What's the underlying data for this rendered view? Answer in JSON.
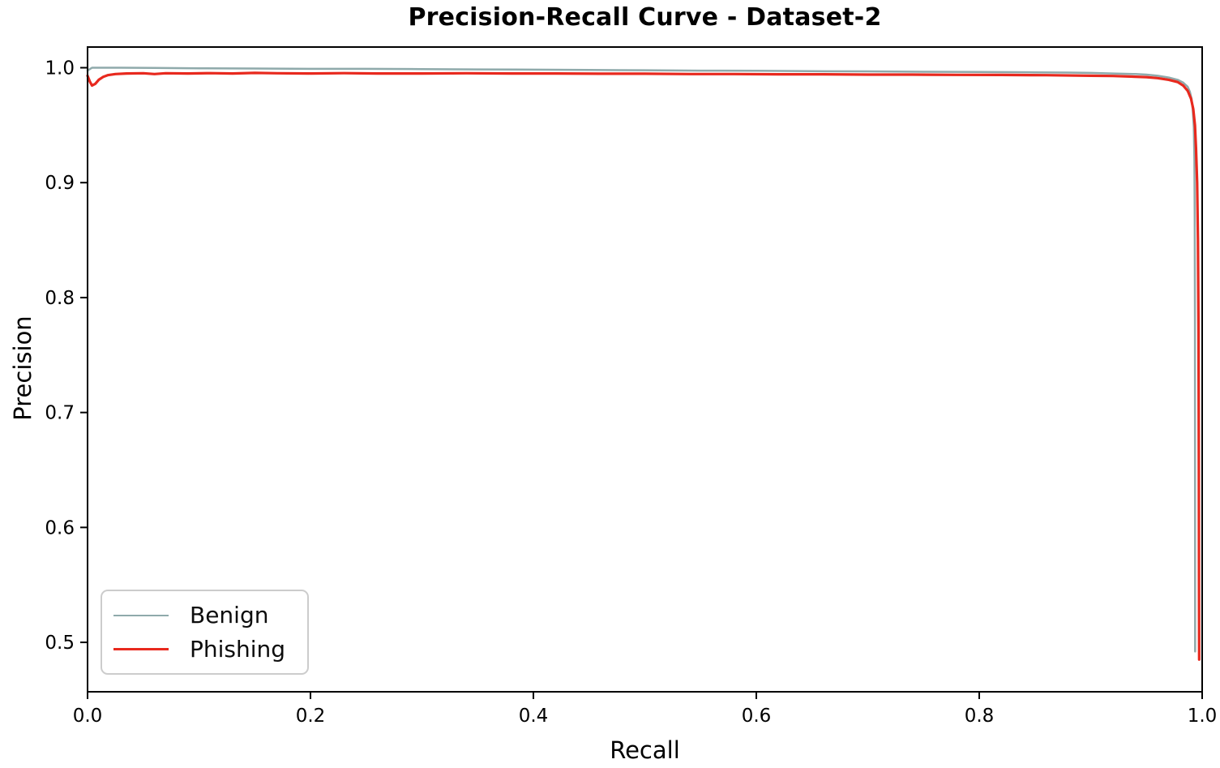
{
  "title": "Precision-Recall Curve - Dataset-2",
  "axes": {
    "xlabel": "Recall",
    "ylabel": "Precision"
  },
  "legend": {
    "position": "lower-left",
    "items": [
      {
        "label": "Benign",
        "color": "#8faaab"
      },
      {
        "label": "Phishing",
        "color": "#e8291e"
      }
    ]
  },
  "chart_data": {
    "type": "line",
    "title": "Precision-Recall Curve - Dataset-2",
    "xlabel": "Recall",
    "ylabel": "Precision",
    "xlim": [
      0.0,
      1.0
    ],
    "ylim": [
      0.457,
      1.018
    ],
    "grid": false,
    "axis_color": "#000000",
    "x_ticks": {
      "values": [
        0.0,
        0.2,
        0.4,
        0.6,
        0.8,
        1.0
      ],
      "labels": [
        "0.0",
        "0.2",
        "0.4",
        "0.6",
        "0.8",
        "1.0"
      ]
    },
    "y_ticks": {
      "values": [
        0.5,
        0.6,
        0.7,
        0.8,
        0.9,
        1.0
      ],
      "labels": [
        "0.5",
        "0.6",
        "0.7",
        "0.8",
        "0.9",
        "1.0"
      ]
    },
    "series": [
      {
        "name": "Benign",
        "color": "#8faaab",
        "linewidth": 2.5,
        "points": [
          [
            0.0,
            0.9975
          ],
          [
            0.004,
            1.0
          ],
          [
            0.03,
            1.0
          ],
          [
            0.06,
            0.9998
          ],
          [
            0.1,
            0.9995
          ],
          [
            0.15,
            0.9993
          ],
          [
            0.2,
            0.999
          ],
          [
            0.25,
            0.999
          ],
          [
            0.3,
            0.9988
          ],
          [
            0.35,
            0.9985
          ],
          [
            0.4,
            0.9983
          ],
          [
            0.45,
            0.998
          ],
          [
            0.5,
            0.9978
          ],
          [
            0.55,
            0.9975
          ],
          [
            0.6,
            0.9973
          ],
          [
            0.65,
            0.997
          ],
          [
            0.7,
            0.9968
          ],
          [
            0.75,
            0.9965
          ],
          [
            0.8,
            0.9963
          ],
          [
            0.85,
            0.996
          ],
          [
            0.88,
            0.9958
          ],
          [
            0.9,
            0.9955
          ],
          [
            0.92,
            0.995
          ],
          [
            0.94,
            0.9945
          ],
          [
            0.95,
            0.994
          ],
          [
            0.96,
            0.993
          ],
          [
            0.97,
            0.9915
          ],
          [
            0.978,
            0.9895
          ],
          [
            0.983,
            0.987
          ],
          [
            0.987,
            0.9835
          ],
          [
            0.989,
            0.979
          ],
          [
            0.9905,
            0.973
          ],
          [
            0.9915,
            0.964
          ],
          [
            0.9925,
            0.948
          ],
          [
            0.993,
            0.92
          ],
          [
            0.9933,
            0.87
          ],
          [
            0.9935,
            0.78
          ],
          [
            0.9936,
            0.65
          ],
          [
            0.9937,
            0.492
          ]
        ]
      },
      {
        "name": "Phishing",
        "color": "#e8291e",
        "linewidth": 3.2,
        "points": [
          [
            0.0,
            0.993
          ],
          [
            0.002,
            0.988
          ],
          [
            0.004,
            0.9845
          ],
          [
            0.007,
            0.986
          ],
          [
            0.01,
            0.9895
          ],
          [
            0.014,
            0.992
          ],
          [
            0.018,
            0.9935
          ],
          [
            0.025,
            0.9945
          ],
          [
            0.035,
            0.995
          ],
          [
            0.05,
            0.9952
          ],
          [
            0.06,
            0.9945
          ],
          [
            0.07,
            0.9952
          ],
          [
            0.09,
            0.995
          ],
          [
            0.11,
            0.9953
          ],
          [
            0.13,
            0.995
          ],
          [
            0.15,
            0.9955
          ],
          [
            0.17,
            0.9952
          ],
          [
            0.2,
            0.995
          ],
          [
            0.23,
            0.9953
          ],
          [
            0.26,
            0.995
          ],
          [
            0.3,
            0.995
          ],
          [
            0.34,
            0.9952
          ],
          [
            0.38,
            0.995
          ],
          [
            0.42,
            0.995
          ],
          [
            0.46,
            0.9948
          ],
          [
            0.5,
            0.9948
          ],
          [
            0.54,
            0.9945
          ],
          [
            0.58,
            0.9945
          ],
          [
            0.62,
            0.9943
          ],
          [
            0.66,
            0.9943
          ],
          [
            0.7,
            0.994
          ],
          [
            0.74,
            0.994
          ],
          [
            0.78,
            0.9938
          ],
          [
            0.82,
            0.9937
          ],
          [
            0.86,
            0.9935
          ],
          [
            0.9,
            0.993
          ],
          [
            0.92,
            0.9928
          ],
          [
            0.94,
            0.9922
          ],
          [
            0.95,
            0.9918
          ],
          [
            0.96,
            0.991
          ],
          [
            0.97,
            0.9895
          ],
          [
            0.978,
            0.9875
          ],
          [
            0.983,
            0.9845
          ],
          [
            0.987,
            0.98
          ],
          [
            0.99,
            0.973
          ],
          [
            0.992,
            0.964
          ],
          [
            0.9935,
            0.95
          ],
          [
            0.9945,
            0.93
          ],
          [
            0.9955,
            0.9
          ],
          [
            0.9962,
            0.85
          ],
          [
            0.9967,
            0.77
          ],
          [
            0.997,
            0.65
          ],
          [
            0.9972,
            0.55
          ],
          [
            0.9973,
            0.485
          ]
        ]
      }
    ]
  }
}
